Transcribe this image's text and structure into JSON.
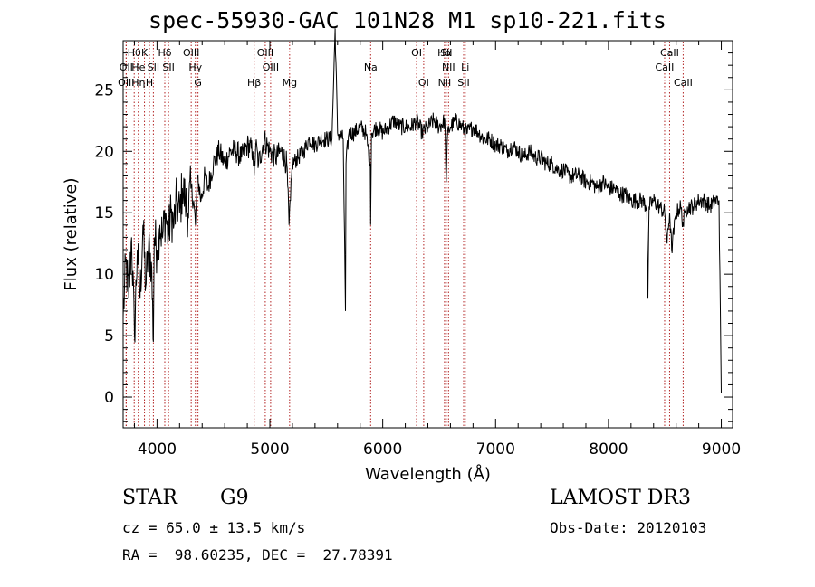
{
  "chart_data": {
    "type": "line",
    "title": "spec-55930-GAC_101N28_M1_sp10-221.fits",
    "xlabel": "Wavelength (Å)",
    "ylabel": "Flux (relative)",
    "xlim": [
      3700,
      9100
    ],
    "ylim": [
      -2.5,
      29
    ],
    "xticks": [
      4000,
      5000,
      6000,
      7000,
      8000,
      9000
    ],
    "yticks": [
      0,
      5,
      10,
      15,
      20,
      25
    ],
    "xtick_labels": [
      "4000",
      "5000",
      "6000",
      "7000",
      "8000",
      "9000"
    ],
    "ytick_labels": [
      "0",
      "5",
      "10",
      "15",
      "20",
      "25"
    ],
    "line_color": "#000000",
    "marker_color": "#b22222",
    "series": [
      {
        "name": "flux",
        "x": [
          3700,
          3725,
          3750,
          3775,
          3800,
          3825,
          3850,
          3875,
          3900,
          3925,
          3950,
          3968,
          3975,
          4000,
          4025,
          4050,
          4075,
          4100,
          4125,
          4150,
          4175,
          4200,
          4225,
          4250,
          4275,
          4300,
          4325,
          4340,
          4360,
          4390,
          4425,
          4450,
          4500,
          4550,
          4600,
          4650,
          4700,
          4750,
          4800,
          4850,
          4861,
          4875,
          4900,
          4950,
          5000,
          5050,
          5100,
          5150,
          5170,
          5183,
          5200,
          5250,
          5300,
          5350,
          5400,
          5450,
          5500,
          5550,
          5578,
          5600,
          5650,
          5670,
          5675,
          5700,
          5750,
          5800,
          5850,
          5890,
          5893,
          5900,
          5950,
          6000,
          6050,
          6100,
          6150,
          6200,
          6250,
          6300,
          6350,
          6400,
          6450,
          6500,
          6550,
          6563,
          6575,
          6600,
          6650,
          6700,
          6750,
          6800,
          6850,
          6900,
          6950,
          7000,
          7050,
          7100,
          7150,
          7200,
          7250,
          7300,
          7350,
          7400,
          7450,
          7500,
          7550,
          7600,
          7650,
          7700,
          7750,
          7800,
          7850,
          7900,
          7950,
          8000,
          8050,
          8100,
          8150,
          8200,
          8250,
          8300,
          8340,
          8350,
          8360,
          8400,
          8450,
          8498,
          8520,
          8542,
          8560,
          8600,
          8640,
          8662,
          8680,
          8700,
          8750,
          8800,
          8850,
          8900,
          8950,
          8980,
          9000
        ],
        "values": [
          6.5,
          11,
          8,
          13,
          5,
          12,
          8,
          14,
          9,
          12,
          11,
          4.5,
          13,
          12,
          14,
          13,
          15,
          13,
          15,
          14,
          16,
          15,
          17,
          16,
          15,
          17,
          16,
          14,
          18,
          16,
          18,
          17,
          19,
          20,
          19,
          20,
          20,
          19.5,
          20.5,
          20,
          18,
          20.5,
          19,
          21,
          20,
          19.5,
          20,
          19,
          14,
          16,
          19,
          19.5,
          20,
          21,
          20.5,
          21,
          21,
          21,
          30,
          21.5,
          21,
          7,
          19,
          21.5,
          21.5,
          22,
          21.5,
          19,
          14,
          21.5,
          22,
          21.5,
          22,
          22.5,
          22,
          22,
          22,
          22.5,
          21.5,
          22,
          22.5,
          22,
          22.5,
          17.5,
          21.5,
          22,
          22.5,
          22,
          21.5,
          22,
          21.5,
          21,
          21,
          20.5,
          20.5,
          20,
          20.5,
          20,
          19.5,
          20,
          19.5,
          19.5,
          19,
          19,
          18.5,
          18.5,
          18,
          18,
          18,
          17.5,
          17.5,
          17,
          17.5,
          17,
          17,
          16.5,
          16.5,
          16,
          16,
          16,
          15.5,
          8,
          15.5,
          16,
          15.5,
          15,
          12.5,
          15,
          12,
          15,
          15.5,
          14,
          15,
          15.5,
          15.5,
          16,
          16,
          15.5,
          16,
          16,
          0.3
        ]
      }
    ],
    "line_markers": [
      {
        "label": "Hθ",
        "x": 3798,
        "row": 1
      },
      {
        "label": "OII",
        "x": 3727,
        "row": 2
      },
      {
        "label": "OIII",
        "x": 3727,
        "row": 3
      },
      {
        "label": "He",
        "x": 3835,
        "row": 2
      },
      {
        "label": "Hη",
        "x": 3835,
        "row": 3
      },
      {
        "label": "K",
        "x": 3889,
        "row": 1
      },
      {
        "label": "H",
        "x": 3933,
        "row": 3
      },
      {
        "label": "SII",
        "x": 3968,
        "row": 2
      },
      {
        "label": "Hδ",
        "x": 4069,
        "row": 1
      },
      {
        "label": "SII",
        "x": 4102,
        "row": 2
      },
      {
        "label": "OIII",
        "x": 4303,
        "row": 1
      },
      {
        "label": "Hγ",
        "x": 4340,
        "row": 2
      },
      {
        "label": "G",
        "x": 4363,
        "row": 3
      },
      {
        "label": "Hβ",
        "x": 4861,
        "row": 3
      },
      {
        "label": "OIII",
        "x": 4959,
        "row": 1
      },
      {
        "label": "OIII",
        "x": 5007,
        "row": 2
      },
      {
        "label": "Mg",
        "x": 5175,
        "row": 3
      },
      {
        "label": "Na",
        "x": 5893,
        "row": 2
      },
      {
        "label": "OI",
        "x": 6300,
        "row": 1
      },
      {
        "label": "OI",
        "x": 6363,
        "row": 3
      },
      {
        "label": "Hα",
        "x": 6548,
        "row": 1
      },
      {
        "label": "SII",
        "x": 6563,
        "row": 1
      },
      {
        "label": "NII",
        "x": 6583,
        "row": 2
      },
      {
        "label": "NII",
        "x": 6548,
        "row": 3
      },
      {
        "label": "SII",
        "x": 6717,
        "row": 3
      },
      {
        "label": "Li",
        "x": 6731,
        "row": 2
      },
      {
        "label": "CaII",
        "x": 8498,
        "row": 2
      },
      {
        "label": "CaII",
        "x": 8542,
        "row": 1
      },
      {
        "label": "CaII",
        "x": 8662,
        "row": 3
      }
    ]
  },
  "info": {
    "object_class": "STAR",
    "subclass": "G9",
    "survey": "LAMOST DR3",
    "cz_line": "cz = 65.0 ± 13.5 km/s",
    "obs_date_line": "Obs-Date: 20120103",
    "radec_line": "RA =  98.60235, DEC =  27.78391"
  }
}
